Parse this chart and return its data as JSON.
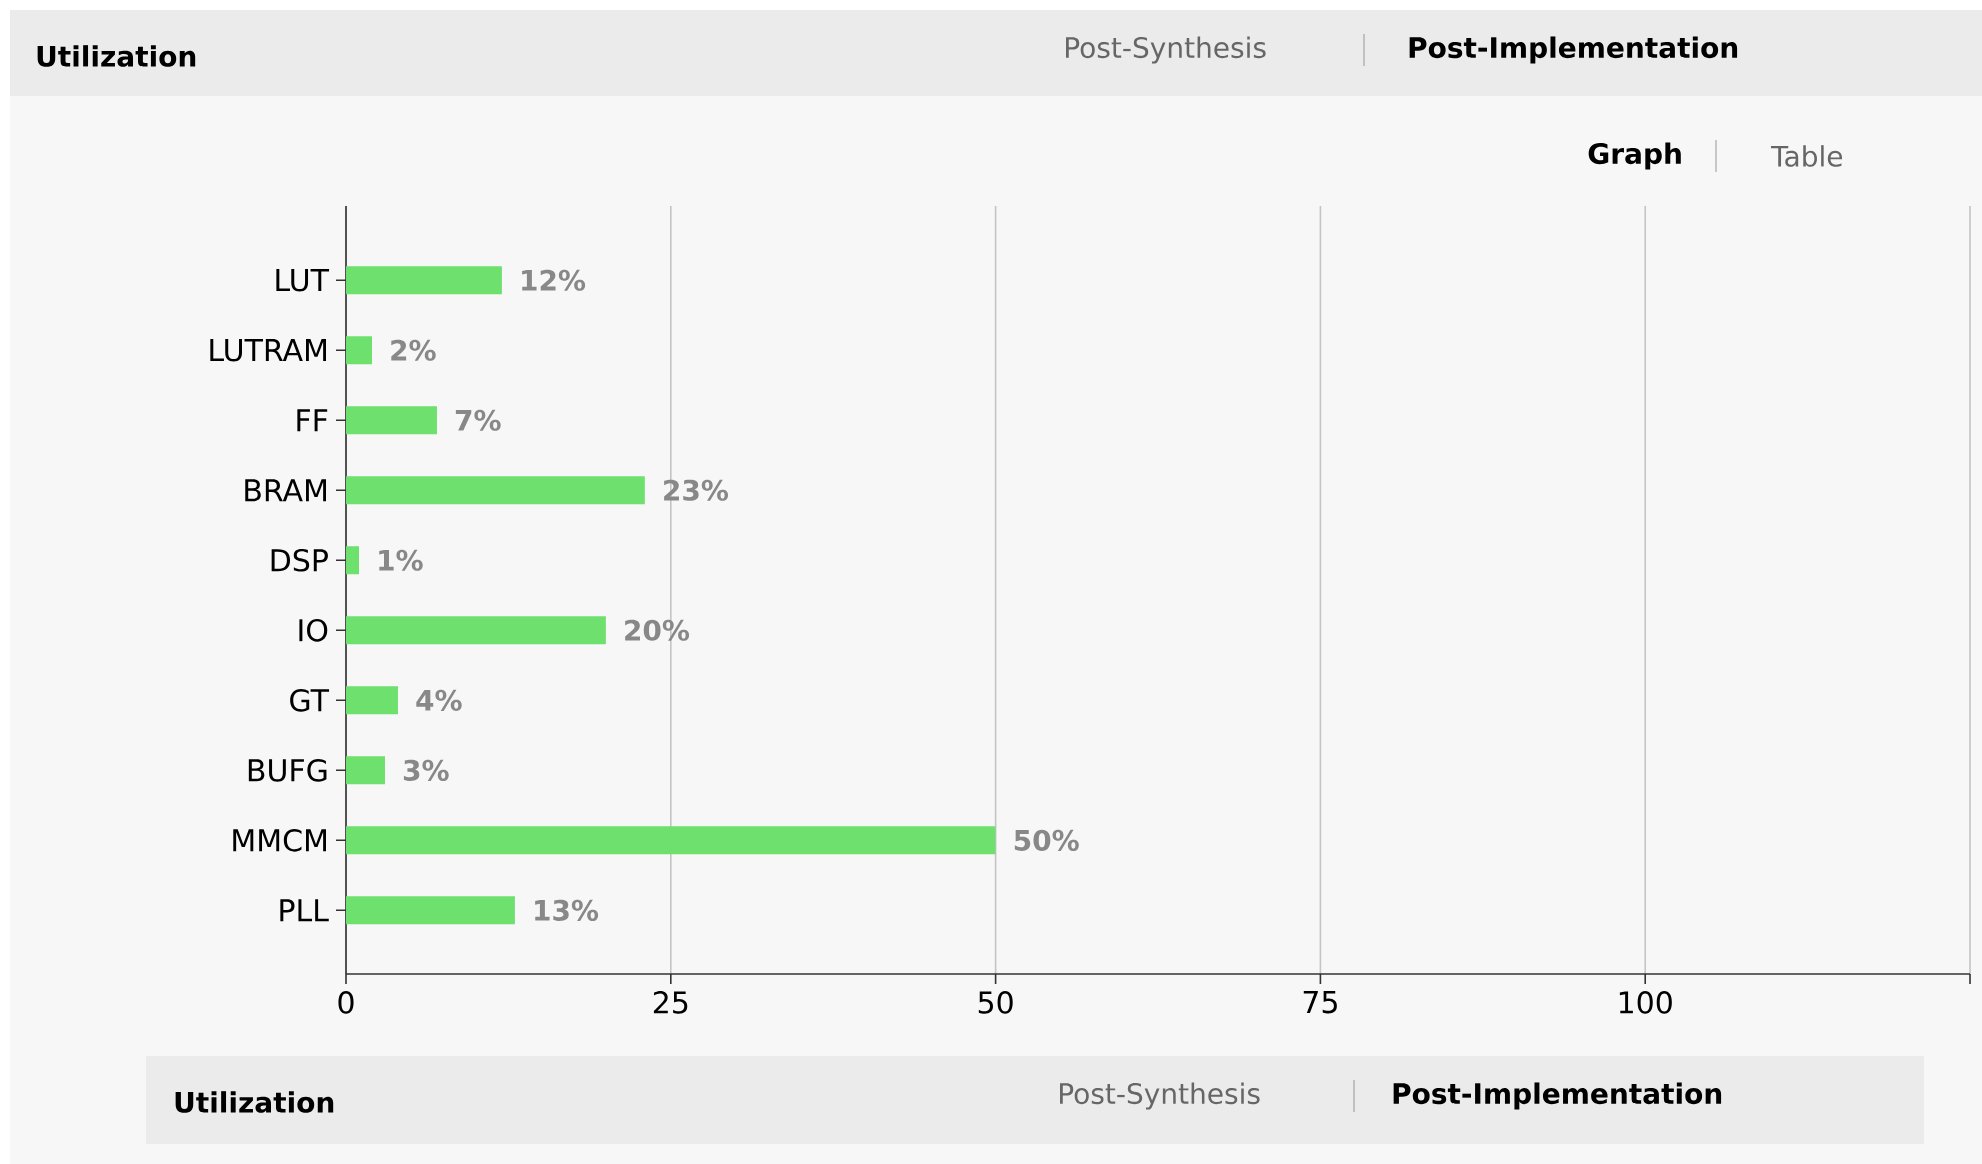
{
  "chart_data": {
    "type": "bar",
    "orientation": "horizontal",
    "title": "Utilization",
    "annotations": [
      "Post-Synthesis",
      "Post-Implementation",
      "Graph",
      "Table",
      "Utilization",
      "Post-Synthesis",
      "Post-Implementation"
    ],
    "categories": [
      "LUT",
      "LUTRAM",
      "FF",
      "BRAM",
      "DSP",
      "IO",
      "GT",
      "BUFG",
      "MMCM",
      "PLL"
    ],
    "values": [
      12,
      2,
      7,
      23,
      1,
      20,
      4,
      3,
      50,
      13
    ],
    "value_labels": [
      "12%",
      "2%",
      "7%",
      "23%",
      "1%",
      "20%",
      "4%",
      "3%",
      "50%",
      "13%"
    ],
    "color": "#6ee06e",
    "xlim": [
      0,
      125
    ],
    "xticks": [
      0,
      25,
      50,
      75,
      100,
      {
        "value": 125,
        "label": null
      }
    ],
    "grid": "x"
  }
}
